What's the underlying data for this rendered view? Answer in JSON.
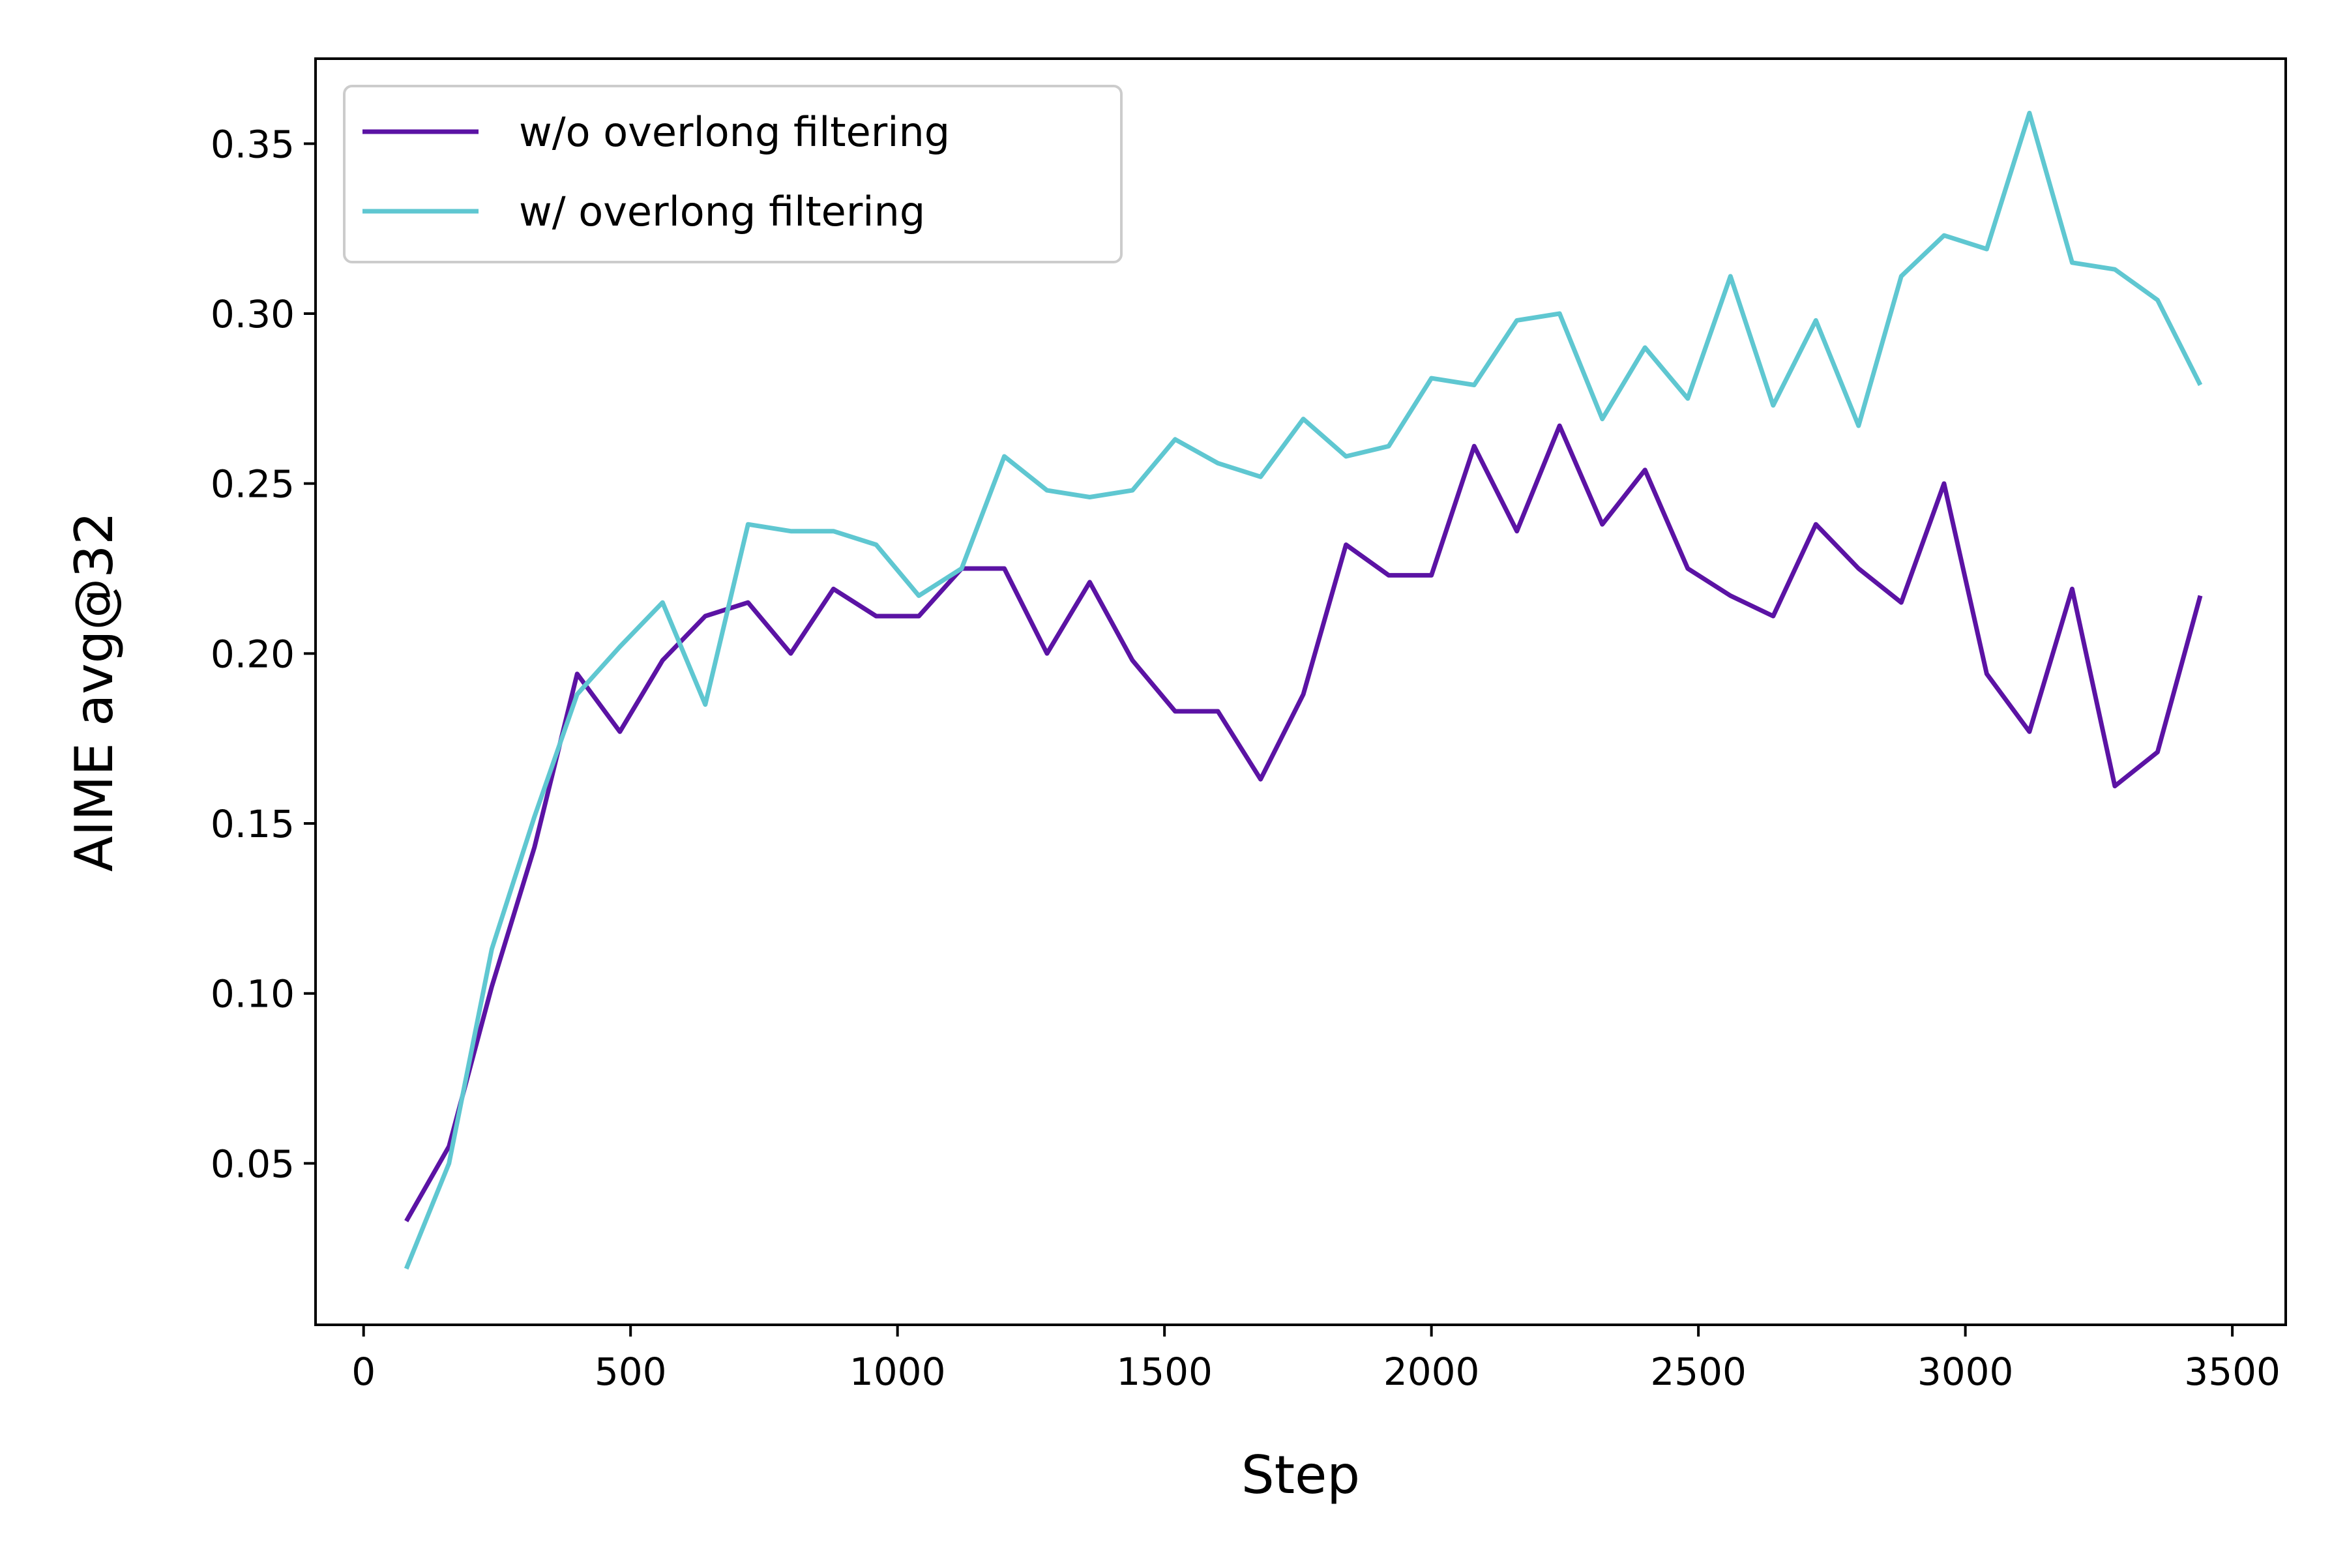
{
  "chart_data": {
    "type": "line",
    "xlabel": "Step",
    "ylabel": "AIME avg@32",
    "xlim": [
      -90,
      3600
    ],
    "ylim": [
      0.0025,
      0.375
    ],
    "xticks": [
      0,
      500,
      1000,
      1500,
      2000,
      2500,
      3000,
      3500
    ],
    "xtick_labels": [
      "0",
      "500",
      "1000",
      "1500",
      "2000",
      "2500",
      "3000",
      "3500"
    ],
    "yticks": [
      0.05,
      0.1,
      0.15,
      0.2,
      0.25,
      0.3,
      0.35
    ],
    "ytick_labels": [
      "0.05",
      "0.10",
      "0.15",
      "0.20",
      "0.25",
      "0.30",
      "0.35"
    ],
    "grid": false,
    "legend_position": "top-left",
    "x": [
      80,
      160,
      240,
      320,
      400,
      480,
      560,
      640,
      720,
      800,
      880,
      960,
      1040,
      1120,
      1200,
      1280,
      1360,
      1440,
      1520,
      1600,
      1680,
      1760,
      1840,
      1920,
      2000,
      2080,
      2160,
      2240,
      2320,
      2400,
      2480,
      2560,
      2640,
      2720,
      2800,
      2880,
      2960,
      3040,
      3120,
      3200,
      3280,
      3360,
      3440
    ],
    "series": [
      {
        "name": "w/o overlong filtering",
        "color": "#5b13a4",
        "values": [
          0.033,
          0.055,
          0.102,
          0.143,
          0.194,
          0.177,
          0.198,
          0.211,
          0.215,
          0.2,
          0.219,
          0.211,
          0.211,
          0.225,
          0.225,
          0.2,
          0.221,
          0.198,
          0.183,
          0.183,
          0.163,
          0.188,
          0.232,
          0.223,
          0.223,
          0.261,
          0.236,
          0.267,
          0.238,
          0.254,
          0.225,
          0.217,
          0.211,
          0.238,
          0.225,
          0.215,
          0.25,
          0.194,
          0.177,
          0.219,
          0.161,
          0.171,
          0.217
        ]
      },
      {
        "name": "w/ overlong filtering",
        "color": "#5fc7d1",
        "values": [
          0.019,
          0.05,
          0.113,
          0.152,
          0.188,
          0.202,
          0.215,
          0.185,
          0.238,
          0.236,
          0.236,
          0.232,
          0.217,
          0.225,
          0.258,
          0.248,
          0.246,
          0.248,
          0.263,
          0.256,
          0.252,
          0.269,
          0.258,
          0.261,
          0.281,
          0.279,
          0.298,
          0.3,
          0.269,
          0.29,
          0.275,
          0.311,
          0.273,
          0.298,
          0.267,
          0.311,
          0.323,
          0.319,
          0.359,
          0.315,
          0.313,
          0.304,
          0.279
        ]
      }
    ]
  }
}
